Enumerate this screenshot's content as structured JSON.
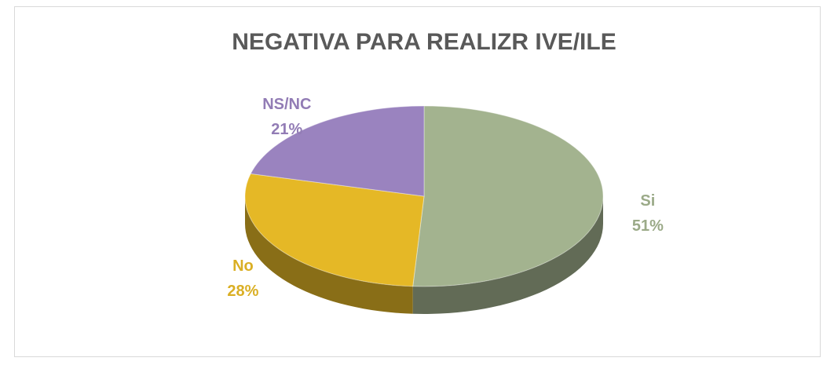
{
  "chart_data": {
    "type": "pie",
    "title": "NEGATIVA PARA REALIZR IVE/ILE",
    "categories": [
      "Si",
      "No",
      "NS/NC"
    ],
    "values": [
      51,
      28,
      21
    ],
    "value_labels": [
      "51%",
      "28%",
      "21%"
    ],
    "colors": [
      "#a3b38f",
      "#e5b826",
      "#9a83bf"
    ],
    "three_d": true
  }
}
